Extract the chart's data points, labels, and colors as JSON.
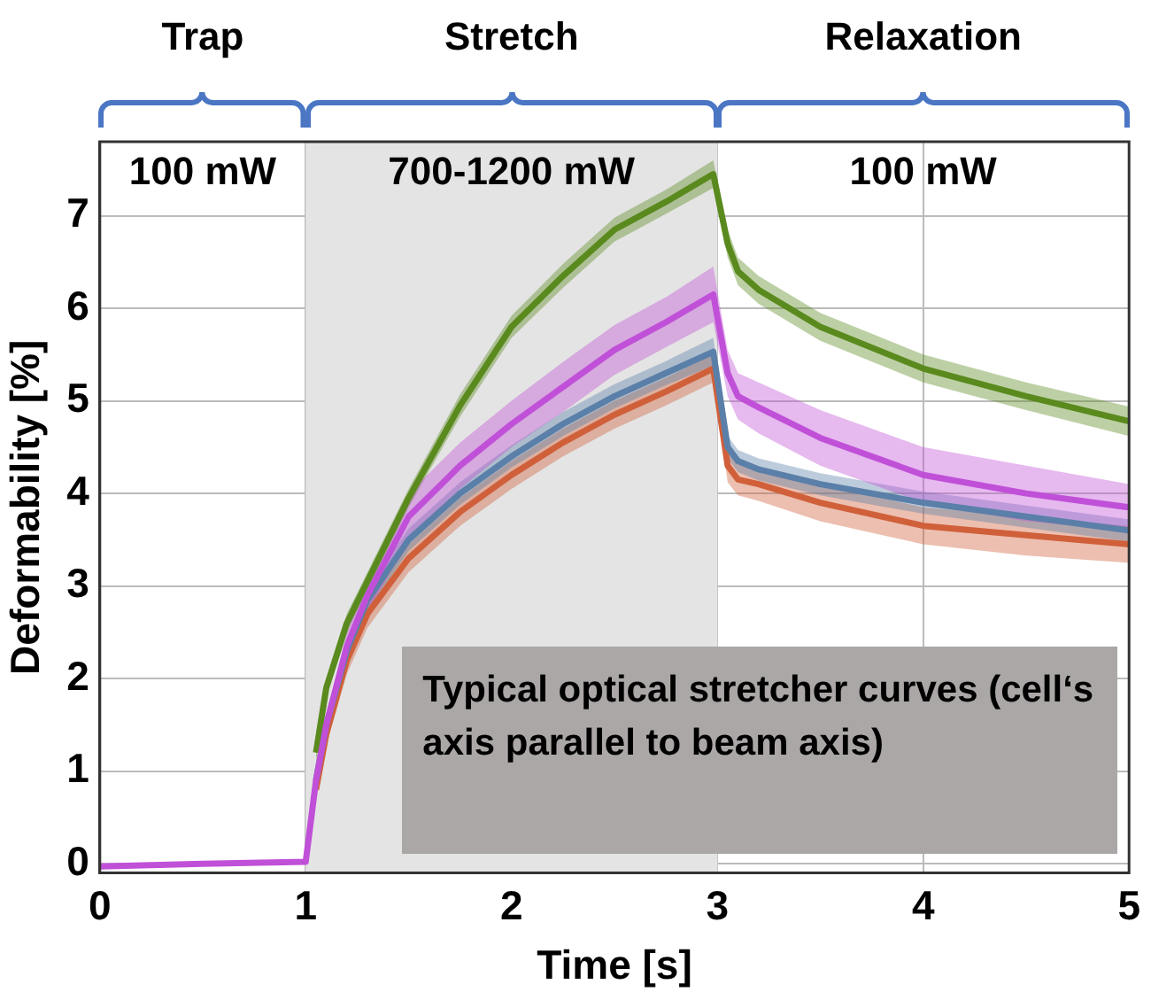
{
  "chart_data": {
    "type": "line",
    "xlabel": "Time [s]",
    "ylabel": "Deformability [%]",
    "x": [
      0,
      0.5,
      1,
      1.05,
      1.1,
      1.2,
      1.3,
      1.5,
      1.75,
      2,
      2.25,
      2.5,
      2.75,
      2.98,
      3.05,
      3.1,
      3.2,
      3.5,
      4,
      4.5,
      5
    ],
    "series": [
      {
        "color": "#d0603a",
        "values": [
          null,
          null,
          null,
          0.8,
          1.4,
          2.2,
          2.7,
          3.3,
          3.8,
          4.2,
          4.55,
          4.85,
          5.1,
          5.35,
          4.3,
          4.15,
          4.1,
          3.9,
          3.65,
          3.55,
          3.45
        ],
        "lower": [
          null,
          null,
          null,
          0.7,
          1.28,
          2.05,
          2.55,
          3.15,
          3.65,
          4.05,
          4.4,
          4.7,
          4.95,
          5.2,
          4.12,
          3.98,
          3.92,
          3.7,
          3.45,
          3.33,
          3.25
        ],
        "upper": [
          null,
          null,
          null,
          0.9,
          1.52,
          2.35,
          2.85,
          3.45,
          3.95,
          4.35,
          4.7,
          5.0,
          5.25,
          5.5,
          4.48,
          4.32,
          4.28,
          4.1,
          3.85,
          3.75,
          3.65
        ]
      },
      {
        "color": "#5a7fa8",
        "values": [
          null,
          null,
          null,
          0.9,
          1.5,
          2.3,
          2.85,
          3.5,
          4.0,
          4.4,
          4.75,
          5.05,
          5.3,
          5.53,
          4.5,
          4.35,
          4.26,
          4.1,
          3.9,
          3.75,
          3.6
        ],
        "lower": [
          null,
          null,
          null,
          0.82,
          1.4,
          2.2,
          2.73,
          3.38,
          3.88,
          4.28,
          4.62,
          4.92,
          5.17,
          5.38,
          4.38,
          4.23,
          4.14,
          3.98,
          3.78,
          3.63,
          3.48
        ],
        "upper": [
          null,
          null,
          null,
          0.98,
          1.6,
          2.4,
          2.97,
          3.62,
          4.12,
          4.52,
          4.88,
          5.18,
          5.43,
          5.68,
          4.62,
          4.47,
          4.38,
          4.22,
          4.02,
          3.87,
          3.72
        ]
      },
      {
        "color": "#5a8a1e",
        "values": [
          null,
          null,
          null,
          1.2,
          1.9,
          2.6,
          3.05,
          3.95,
          4.95,
          5.8,
          6.35,
          6.85,
          7.15,
          7.45,
          6.7,
          6.4,
          6.2,
          5.8,
          5.35,
          5.05,
          4.78
        ],
        "lower": [
          null,
          null,
          null,
          1.1,
          1.8,
          2.5,
          2.95,
          3.85,
          4.83,
          5.68,
          6.22,
          6.72,
          7.02,
          7.3,
          6.55,
          6.25,
          6.05,
          5.65,
          5.2,
          4.9,
          4.62
        ],
        "upper": [
          null,
          null,
          null,
          1.3,
          2.0,
          2.7,
          3.15,
          4.05,
          5.07,
          5.92,
          6.48,
          6.98,
          7.28,
          7.6,
          6.85,
          6.55,
          6.35,
          5.95,
          5.5,
          5.2,
          4.94
        ]
      },
      {
        "color": "#c050d8",
        "values": [
          -0.03,
          0,
          0.02,
          0.9,
          1.5,
          2.35,
          2.9,
          3.75,
          4.3,
          4.75,
          5.15,
          5.55,
          5.85,
          6.15,
          5.3,
          5.05,
          4.93,
          4.6,
          4.2,
          4.0,
          3.85
        ],
        "lower": [
          -0.05,
          -0.02,
          0,
          0.8,
          1.4,
          2.2,
          2.72,
          3.5,
          4.05,
          4.5,
          4.88,
          5.28,
          5.58,
          5.85,
          5.05,
          4.8,
          4.65,
          4.3,
          3.9,
          3.7,
          3.6
        ],
        "upper": [
          -0.01,
          0.02,
          0.04,
          1.0,
          1.6,
          2.5,
          3.08,
          4.0,
          4.55,
          5.0,
          5.42,
          5.82,
          6.12,
          6.45,
          5.55,
          5.3,
          5.2,
          4.9,
          4.5,
          4.3,
          4.1
        ]
      }
    ],
    "xlim": [
      0,
      5
    ],
    "xticks": [
      0,
      1,
      2,
      3,
      4,
      5
    ],
    "ylim": [
      -0.1,
      7.8
    ],
    "yticks": [
      0,
      1,
      2,
      3,
      4,
      5,
      6,
      7
    ],
    "grid": true,
    "legend": false,
    "marker": "none",
    "line_style": "solid",
    "bands": [
      {
        "axis": "x",
        "from": 1,
        "to": 3,
        "color": "#e4e4e4"
      }
    ],
    "annotations": [
      "Trap",
      "Stretch",
      "Relaxation",
      "100 mW",
      "700-1200 mW",
      "100 mW",
      "Typical optical stretcher curves (cell‘s axis parallel to beam axis)"
    ]
  }
}
